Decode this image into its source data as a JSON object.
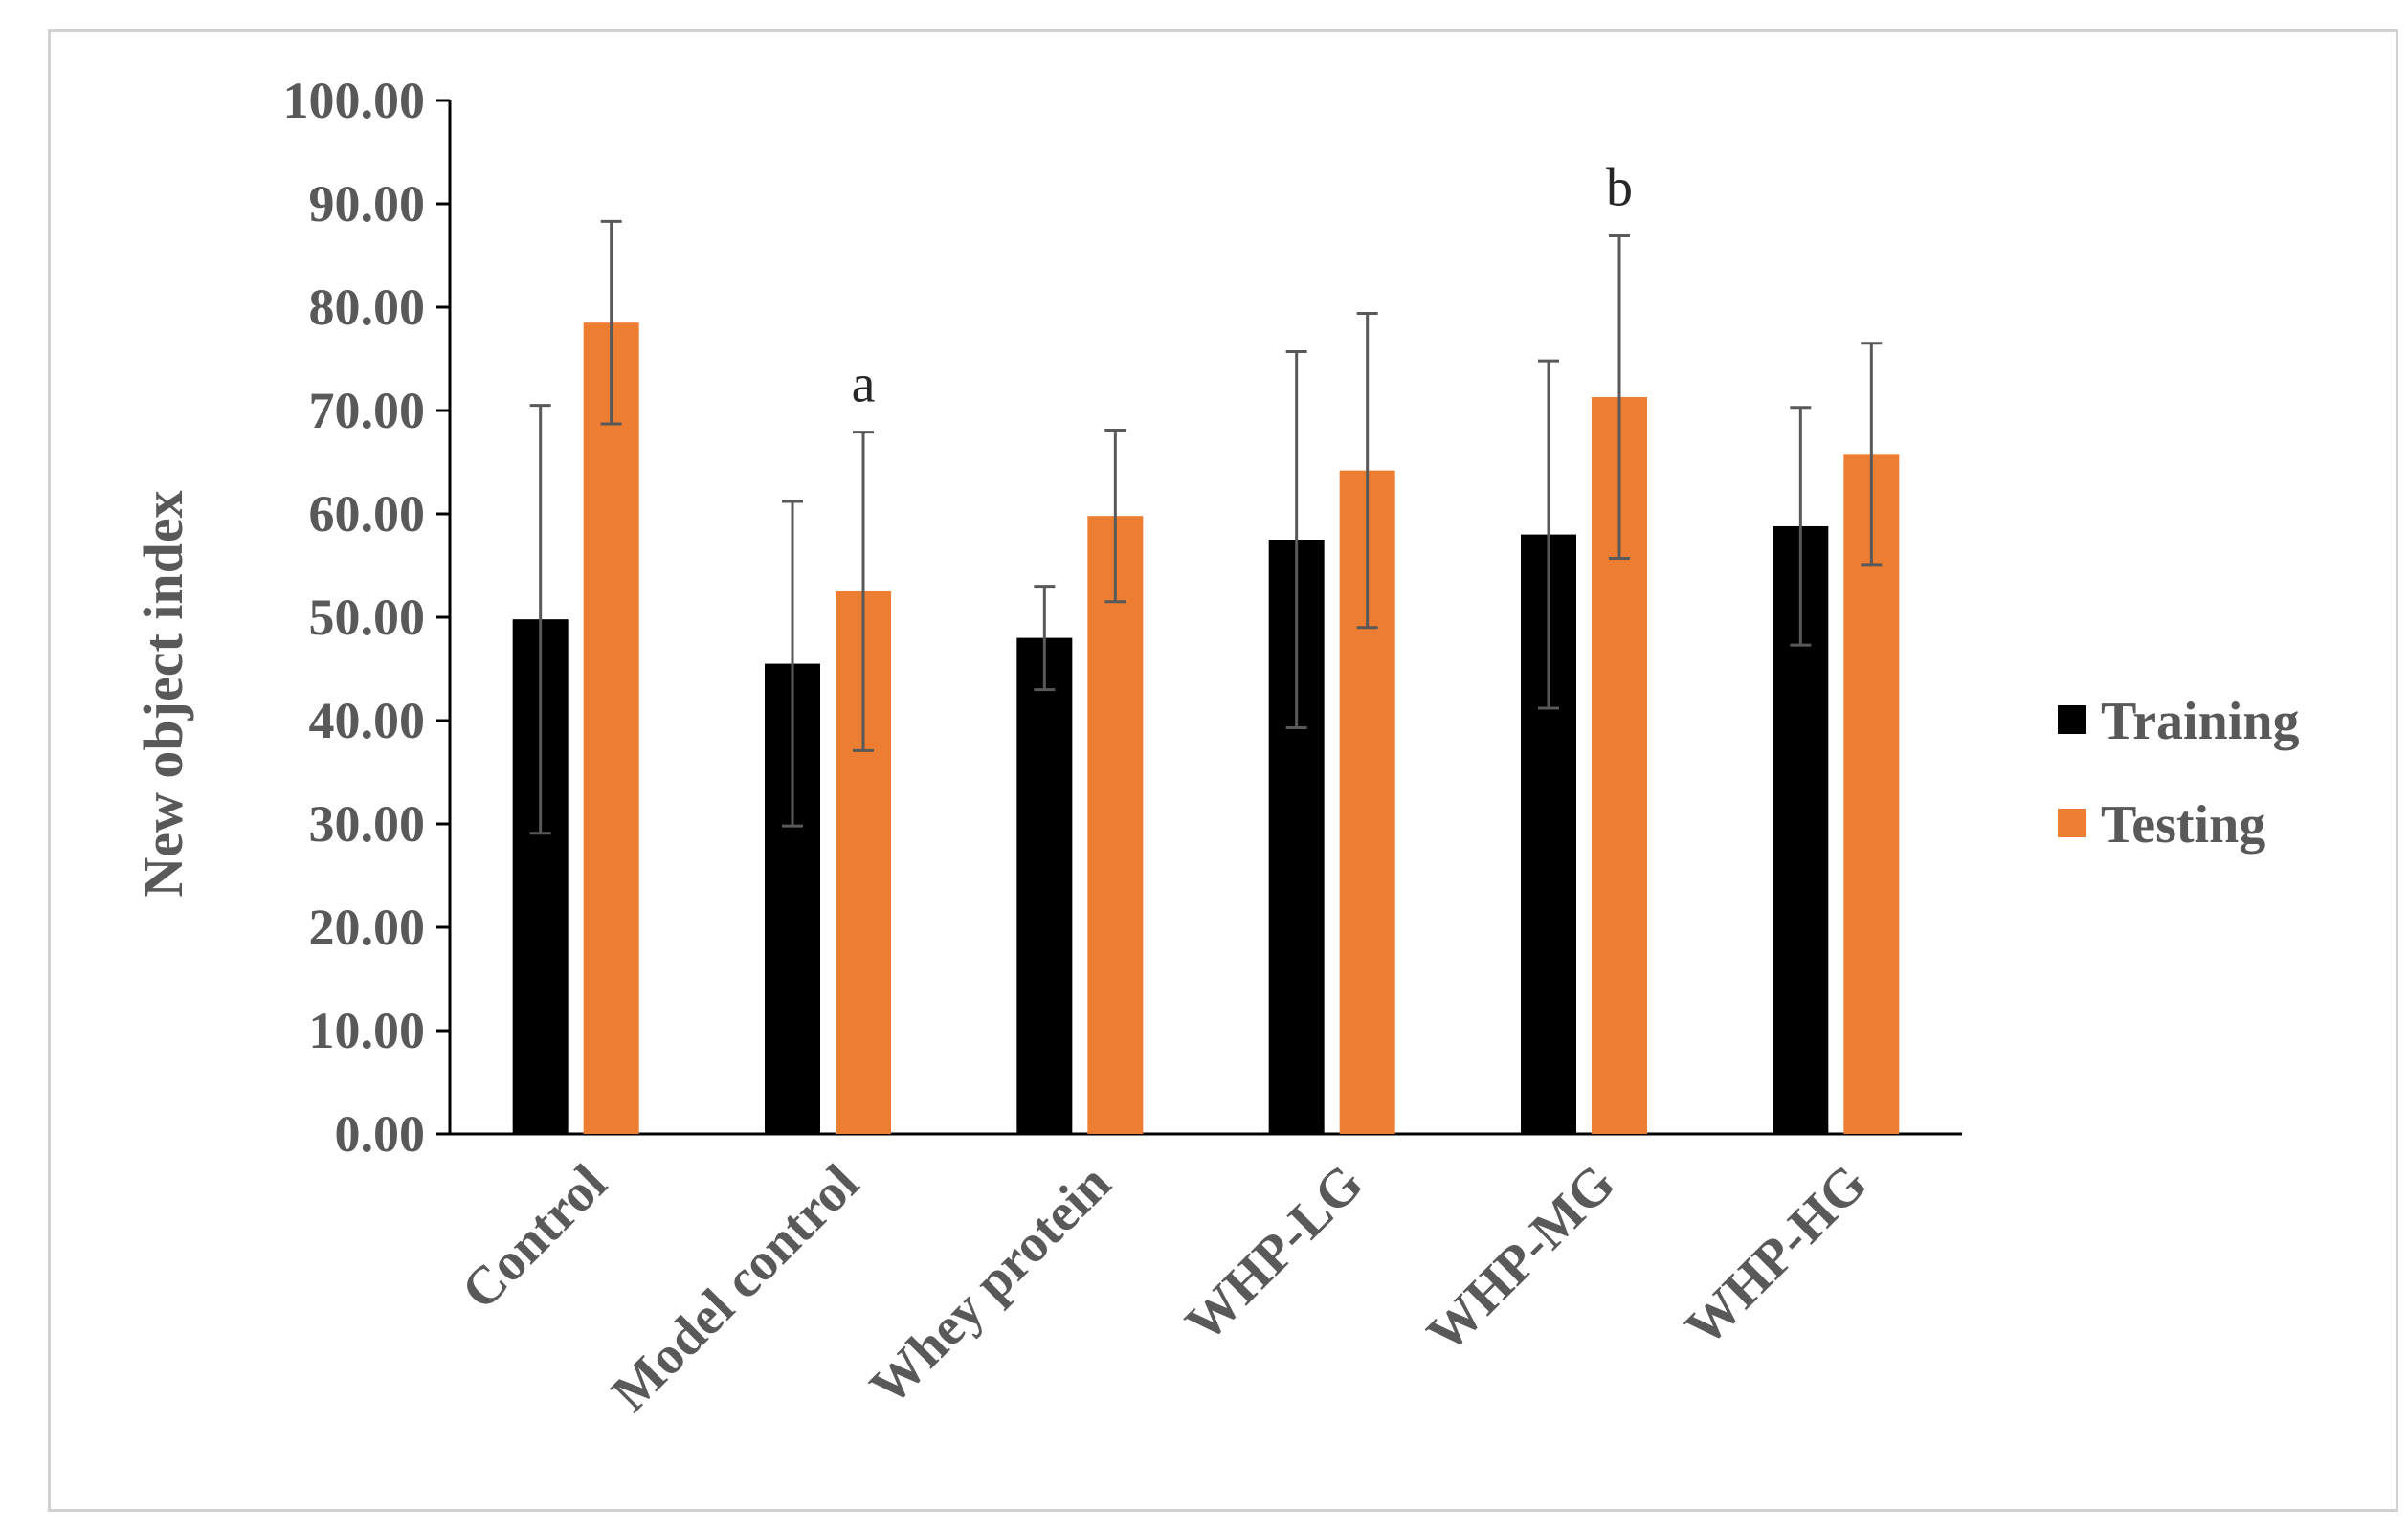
{
  "chart_data": {
    "type": "bar",
    "title": "",
    "xlabel": "",
    "ylabel": "New object index",
    "ylim": [
      0,
      100
    ],
    "yticks": [
      "0.00",
      "10.00",
      "20.00",
      "30.00",
      "40.00",
      "50.00",
      "60.00",
      "70.00",
      "80.00",
      "90.00",
      "100.00"
    ],
    "categories": [
      "Control",
      "Model control",
      "Whey protein",
      "WHP-LG",
      "WHP-MG",
      "WHP-HG"
    ],
    "series": [
      {
        "name": "Training",
        "color": "#000000",
        "values": [
          49.8,
          45.5,
          48.0,
          57.5,
          58.0,
          58.8
        ],
        "errors": [
          20.7,
          15.7,
          5.0,
          18.2,
          16.8,
          11.5
        ]
      },
      {
        "name": "Testing",
        "color": "#ED7D31",
        "values": [
          78.5,
          52.5,
          59.8,
          64.2,
          71.3,
          65.8
        ],
        "errors": [
          9.8,
          15.4,
          8.3,
          15.2,
          15.6,
          10.7
        ]
      }
    ],
    "annotations": [
      {
        "text": "a",
        "category": "Model control",
        "series": "Testing"
      },
      {
        "text": "b",
        "category": "WHP-MG",
        "series": "Testing"
      }
    ],
    "legend_position": "right",
    "grid": false
  }
}
